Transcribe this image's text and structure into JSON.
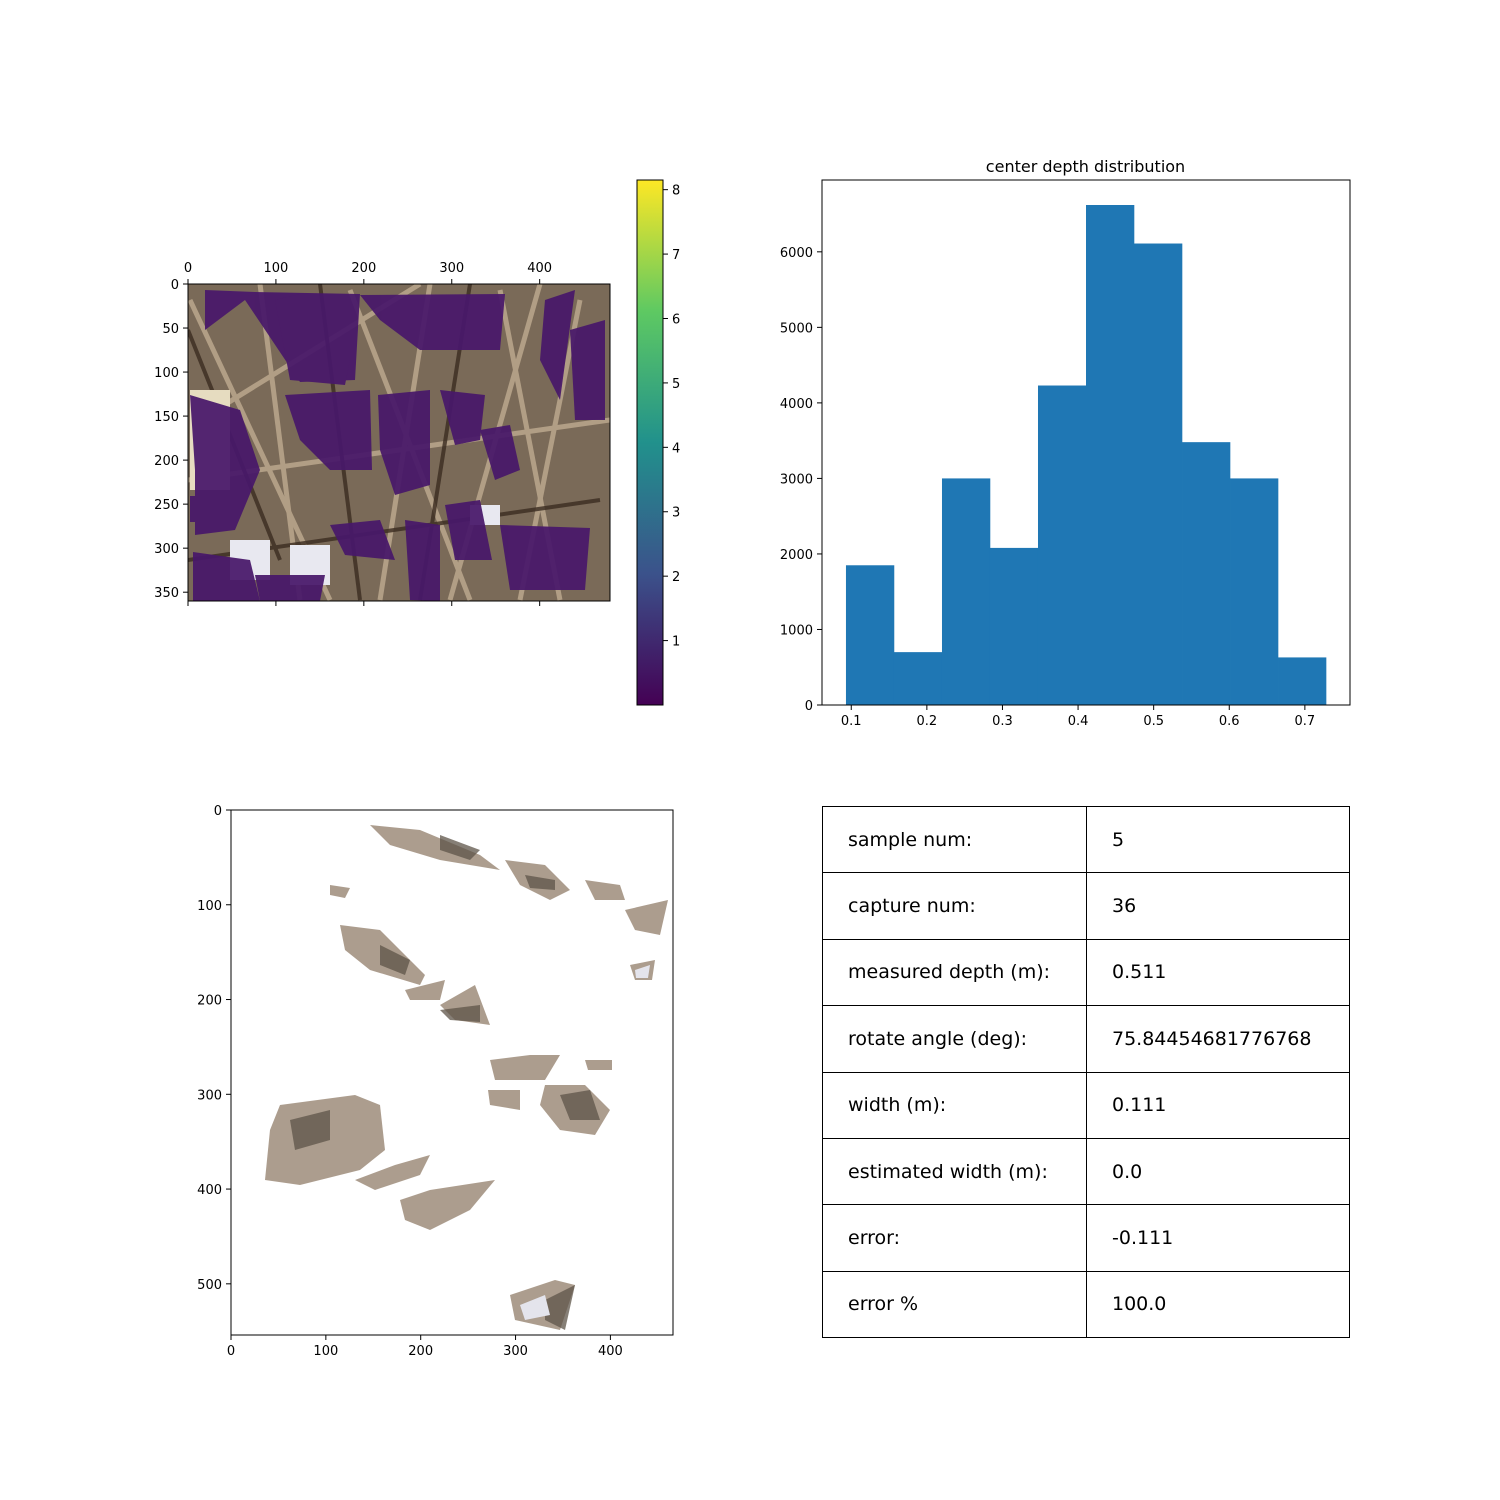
{
  "colors": {
    "bar": "#1f77b4",
    "depth_overlay": "#48186a",
    "photo_tan": "#8f7c66",
    "photo_dark": "#4a3a2c",
    "photo_light": "#d9d2c8",
    "viridis": [
      "#440154",
      "#3b528b",
      "#21918c",
      "#5ec962",
      "#fde725"
    ]
  },
  "chart_data": [
    {
      "type": "heatmap",
      "content": "depth overlay image (viridis colormap) on RGB photo",
      "x_ticks": [
        "0",
        "100",
        "200",
        "300",
        "400"
      ],
      "y_ticks": [
        "0",
        "50",
        "100",
        "150",
        "200",
        "250",
        "300",
        "350"
      ],
      "xlim": [
        0,
        480
      ],
      "ylim": [
        360,
        0
      ],
      "x_tick_position": "top",
      "colorbar": {
        "colormap": "viridis",
        "range": [
          0,
          8.15
        ],
        "ticks": [
          "1",
          "2",
          "3",
          "4",
          "5",
          "6",
          "7",
          "8"
        ]
      }
    },
    {
      "type": "bar",
      "subtype": "histogram",
      "title": "center depth distribution",
      "bin_edges": [
        0.093,
        0.1565,
        0.22,
        0.2835,
        0.347,
        0.4105,
        0.474,
        0.5375,
        0.601,
        0.6645,
        0.728
      ],
      "values": [
        1850,
        700,
        3000,
        2080,
        4230,
        6620,
        6110,
        3480,
        3000,
        630
      ],
      "x_ticks": [
        "0.1",
        "0.2",
        "0.3",
        "0.4",
        "0.5",
        "0.6",
        "0.7"
      ],
      "y_ticks": [
        "0",
        "1000",
        "2000",
        "3000",
        "4000",
        "5000",
        "6000"
      ],
      "xlim": [
        0.0613,
        0.7597
      ],
      "ylim": [
        0,
        6951
      ]
    },
    {
      "type": "heatmap",
      "content": "rotated cropped photo patches on white background",
      "x_ticks": [
        "0",
        "100",
        "200",
        "300",
        "400"
      ],
      "y_ticks": [
        "0",
        "100",
        "200",
        "300",
        "400",
        "500"
      ],
      "xlim": [
        0,
        466
      ],
      "ylim": [
        554,
        0
      ]
    },
    {
      "type": "table",
      "rows": [
        [
          "sample num:",
          "5"
        ],
        [
          "capture num:",
          "36"
        ],
        [
          "measured depth (m):",
          "0.511"
        ],
        [
          "rotate angle (deg):",
          "75.84454681776768"
        ],
        [
          "width (m):",
          "0.111"
        ],
        [
          "estimated width (m):",
          "0.0"
        ],
        [
          "error:",
          "-0.111"
        ],
        [
          "error %",
          "100.0"
        ]
      ]
    }
  ]
}
